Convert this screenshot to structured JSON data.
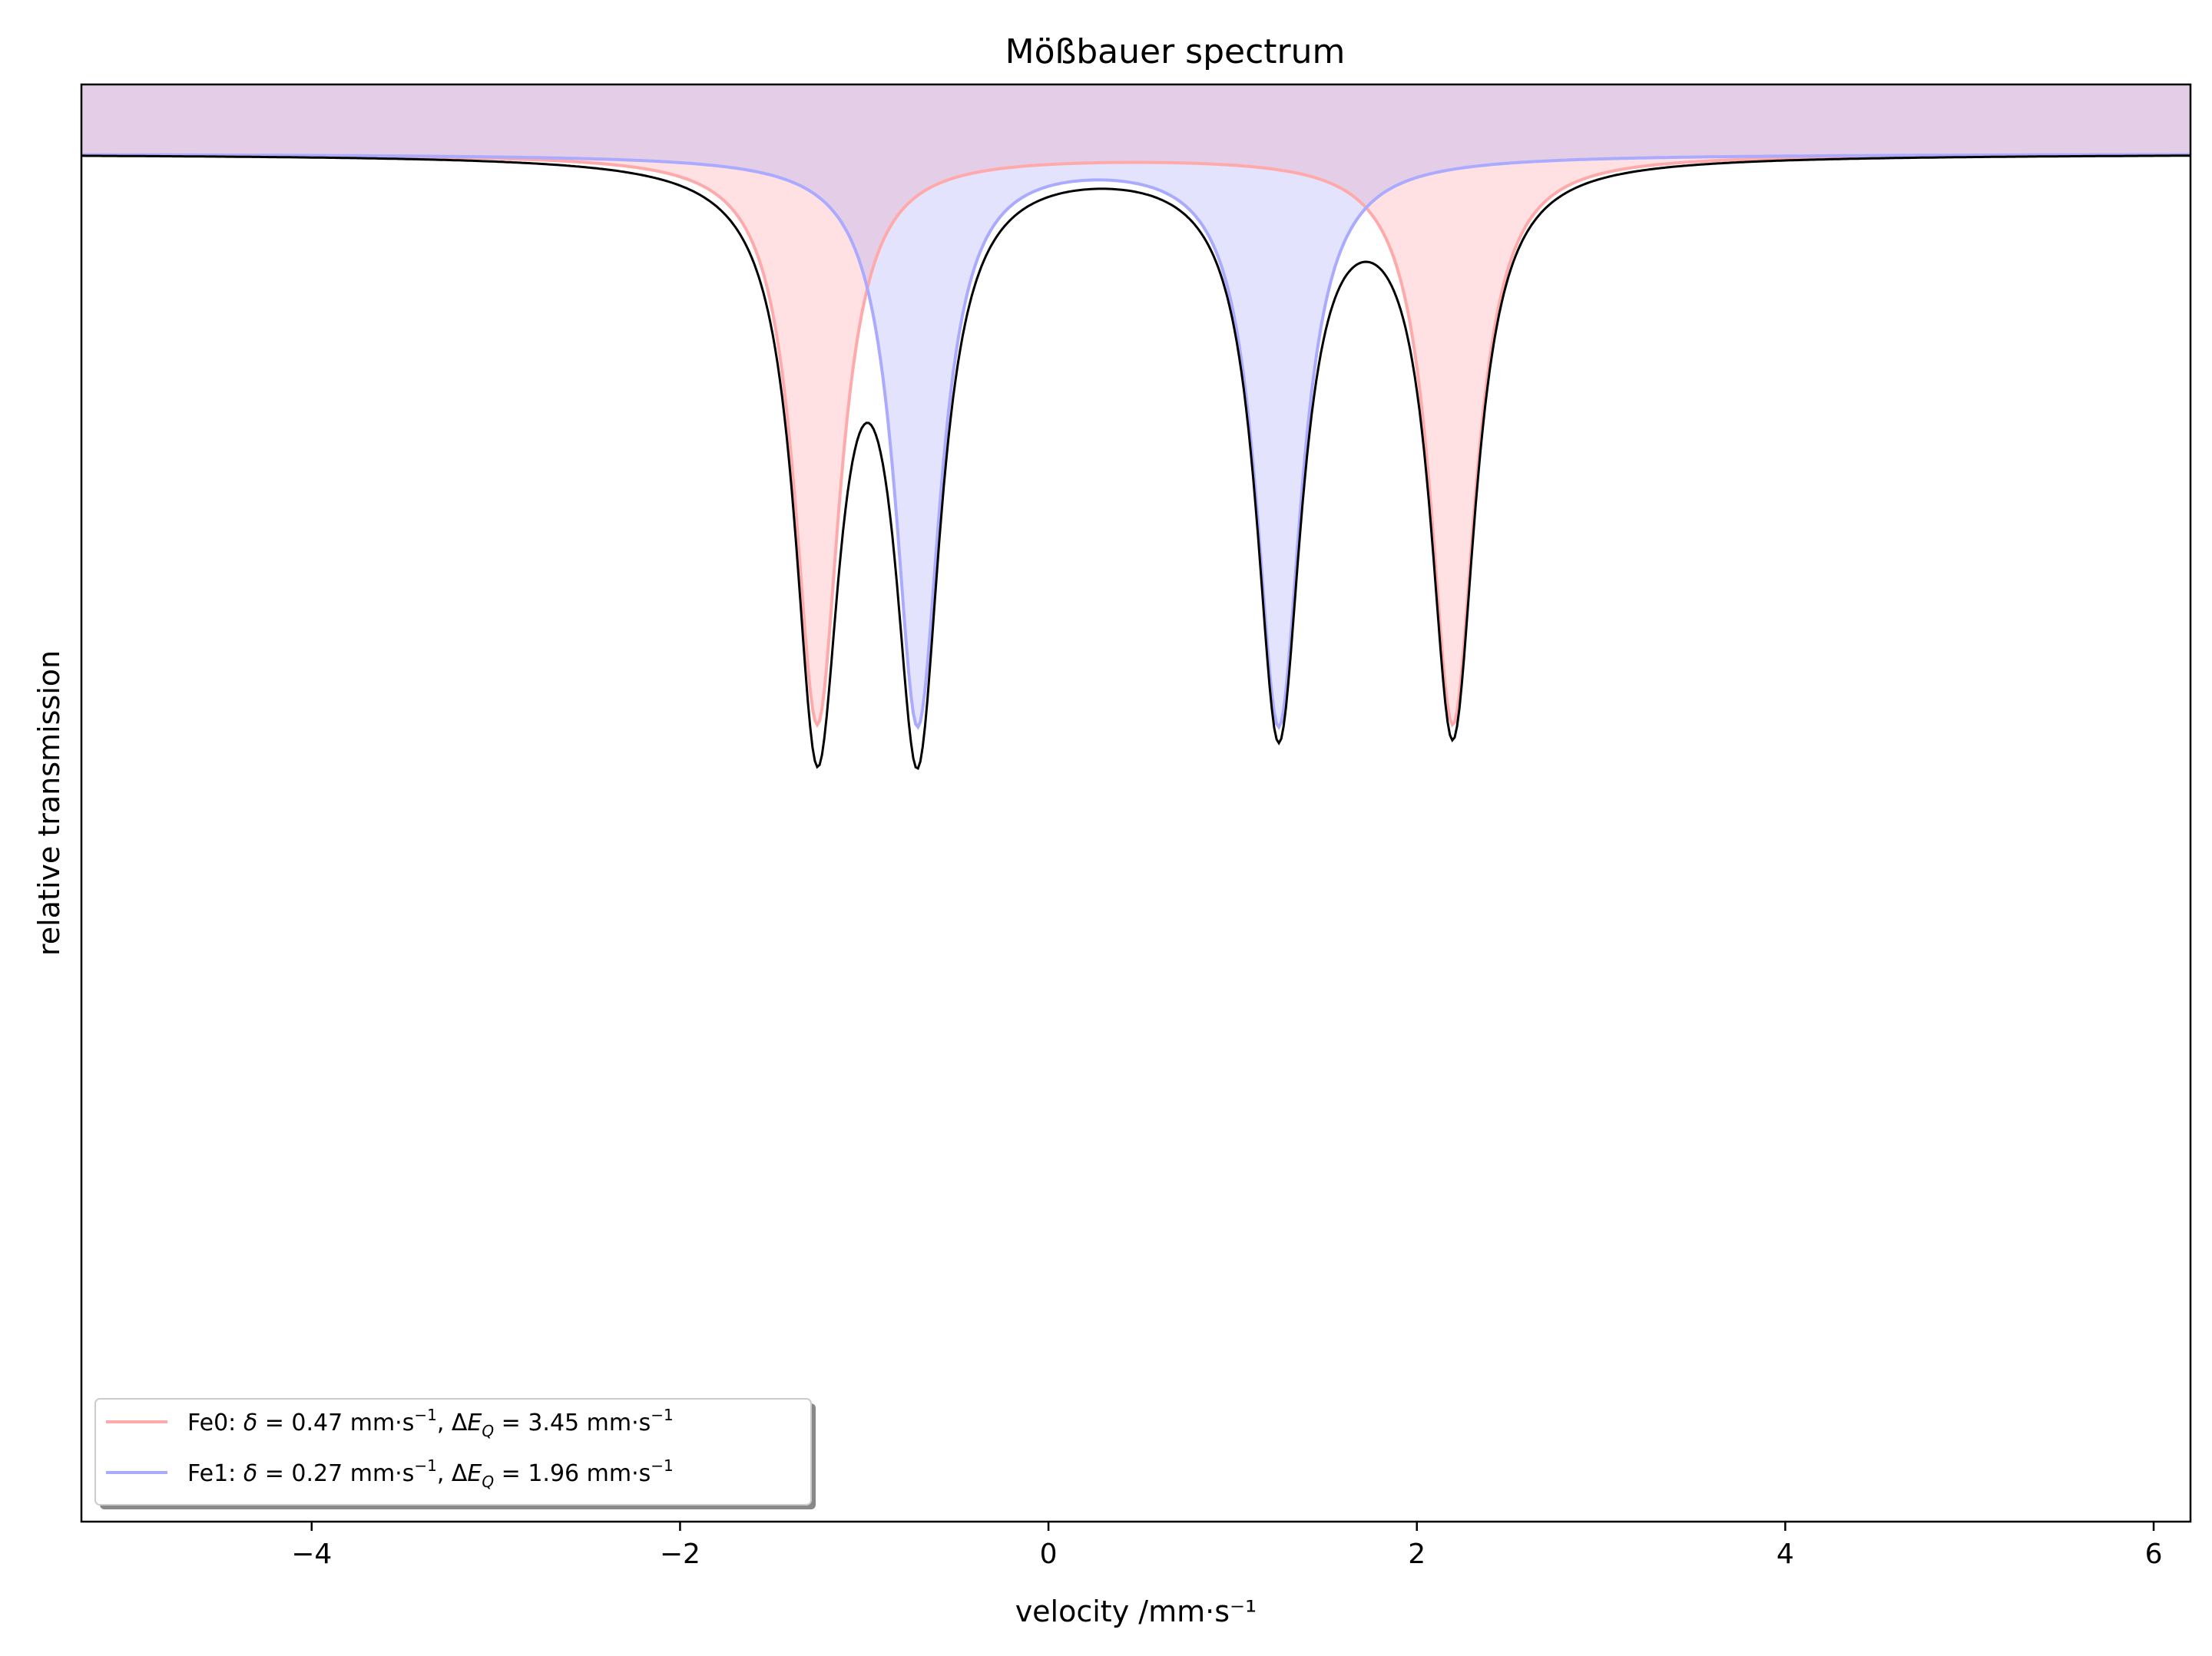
{
  "chart_data": {
    "type": "line",
    "title": "Mößbauer spectrum",
    "xlabel": "velocity /mm·s⁻¹",
    "ylabel": "relative transmission",
    "xlim": [
      -5.25,
      6.2
    ],
    "xticks": [
      -4,
      -2,
      0,
      2,
      4,
      6
    ],
    "xtick_labels": [
      "−4",
      "−2",
      "0",
      "2",
      "4",
      "6"
    ],
    "yticks_shown": false,
    "grid": false,
    "legend_position": "lower-left",
    "series": [
      {
        "name": "Fe0",
        "legend_label": "Fe0: δ = 0.47 mm·s⁻¹, ΔE_Q = 3.45 mm·s⁻¹",
        "legend_parts": [
          "Fe0: ",
          "δ",
          " = 0.47 mm·s",
          "−1",
          ", Δ",
          "E",
          "Q",
          " = 3.45 mm·s",
          "−1"
        ],
        "isomer_shift": 0.47,
        "quadrupole_splitting": 3.45,
        "line_color": "#ffaaaa",
        "fill_color": "#ffe0e3"
      },
      {
        "name": "Fe1",
        "legend_label": "Fe1: δ = 0.27 mm·s⁻¹, ΔE_Q = 1.96 mm·s⁻¹",
        "legend_parts": [
          "Fe1: ",
          "δ",
          " = 0.27 mm·s",
          "−1",
          ", Δ",
          "E",
          "Q",
          " = 1.96 mm·s",
          "−1"
        ],
        "isomer_shift": 0.27,
        "quadrupole_splitting": 1.96,
        "line_color": "#aaaaff",
        "fill_color": "#e3e3fd"
      }
    ],
    "total_line_color": "#000000",
    "overlap_fill_color": "#e4cde6"
  }
}
